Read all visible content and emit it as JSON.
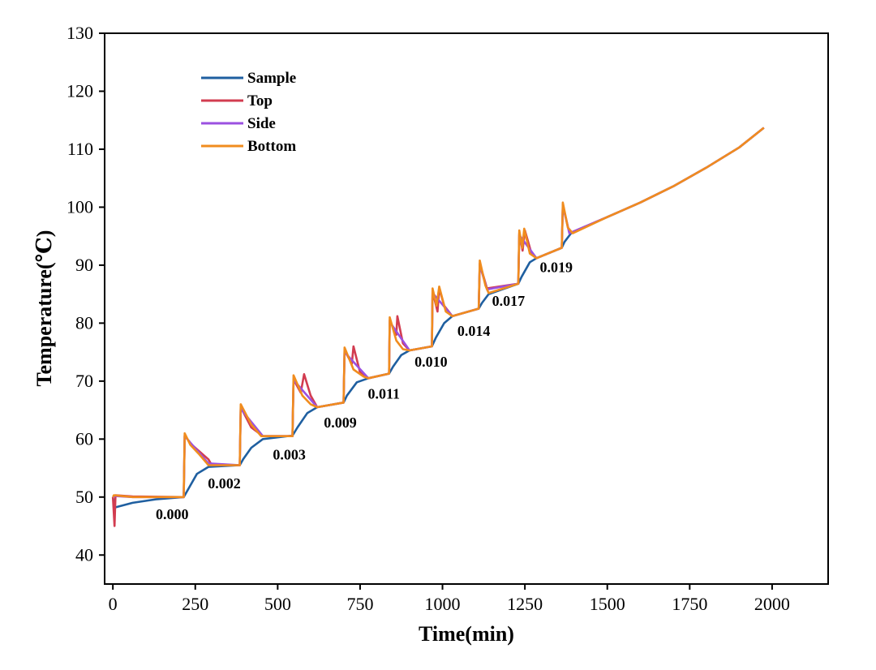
{
  "chart_data": {
    "type": "line",
    "xlabel": "Time(min)",
    "ylabel": "Temperature(℃)",
    "xlim": [
      -25,
      2170
    ],
    "ylim": [
      35,
      130
    ],
    "x_ticks": [
      0,
      250,
      500,
      750,
      1000,
      1250,
      1500,
      1750,
      2000
    ],
    "y_ticks": [
      40,
      50,
      60,
      70,
      80,
      90,
      100,
      110,
      120,
      130
    ],
    "grid": false,
    "legend_position": "top-left",
    "series": [
      {
        "name": "Sample",
        "color": "#1f5fa0",
        "points": [
          [
            0,
            50
          ],
          [
            5,
            48.2
          ],
          [
            60,
            49.0
          ],
          [
            130,
            49.6
          ],
          [
            215,
            50.0
          ],
          [
            230,
            51.5
          ],
          [
            255,
            54.0
          ],
          [
            290,
            55.2
          ],
          [
            385,
            55.5
          ],
          [
            395,
            56.5
          ],
          [
            420,
            58.5
          ],
          [
            455,
            60.0
          ],
          [
            545,
            60.6
          ],
          [
            560,
            62.0
          ],
          [
            590,
            64.5
          ],
          [
            620,
            65.5
          ],
          [
            700,
            66.3
          ],
          [
            710,
            67.5
          ],
          [
            740,
            69.8
          ],
          [
            775,
            70.5
          ],
          [
            838,
            71.3
          ],
          [
            850,
            72.5
          ],
          [
            875,
            74.5
          ],
          [
            900,
            75.3
          ],
          [
            968,
            76.0
          ],
          [
            980,
            77.5
          ],
          [
            1005,
            80.0
          ],
          [
            1030,
            81.2
          ],
          [
            1110,
            82.5
          ],
          [
            1120,
            83.5
          ],
          [
            1140,
            85.0
          ],
          [
            1230,
            86.8
          ],
          [
            1240,
            88.0
          ],
          [
            1265,
            90.5
          ],
          [
            1285,
            91.2
          ],
          [
            1362,
            93.0
          ],
          [
            1370,
            94.0
          ],
          [
            1390,
            95.5
          ],
          [
            1500,
            98.3
          ],
          [
            1600,
            100.8
          ],
          [
            1700,
            103.6
          ],
          [
            1800,
            106.8
          ],
          [
            1900,
            110.3
          ],
          [
            1975,
            113.7
          ]
        ]
      },
      {
        "name": "Top",
        "color": "#d23c50",
        "points": [
          [
            0,
            50
          ],
          [
            5,
            45.0
          ],
          [
            8,
            50.3
          ],
          [
            60,
            50.1
          ],
          [
            215,
            50.0
          ],
          [
            218,
            60.6
          ],
          [
            240,
            59.0
          ],
          [
            290,
            56.5
          ],
          [
            300,
            55.5
          ],
          [
            385,
            55.5
          ],
          [
            388,
            65.5
          ],
          [
            420,
            62.0
          ],
          [
            455,
            60.5
          ],
          [
            545,
            60.5
          ],
          [
            548,
            70.3
          ],
          [
            570,
            68.0
          ],
          [
            580,
            71.2
          ],
          [
            600,
            67.5
          ],
          [
            620,
            65.5
          ],
          [
            700,
            66.3
          ],
          [
            703,
            75.3
          ],
          [
            725,
            73.0
          ],
          [
            730,
            76.0
          ],
          [
            750,
            71.5
          ],
          [
            775,
            70.5
          ],
          [
            838,
            71.3
          ],
          [
            840,
            80.5
          ],
          [
            860,
            78.0
          ],
          [
            863,
            81.2
          ],
          [
            880,
            76.5
          ],
          [
            900,
            75.3
          ],
          [
            968,
            76.0
          ],
          [
            970,
            85.5
          ],
          [
            985,
            82.0
          ],
          [
            990,
            86.0
          ],
          [
            1005,
            83.0
          ],
          [
            1030,
            81.2
          ],
          [
            1110,
            82.5
          ],
          [
            1113,
            90.3
          ],
          [
            1135,
            86.0
          ],
          [
            1230,
            86.8
          ],
          [
            1233,
            95.5
          ],
          [
            1243,
            92.5
          ],
          [
            1250,
            96.0
          ],
          [
            1270,
            92.0
          ],
          [
            1285,
            91.2
          ],
          [
            1362,
            93.0
          ],
          [
            1365,
            100.5
          ],
          [
            1385,
            95.5
          ],
          [
            1500,
            98.3
          ],
          [
            1600,
            100.8
          ],
          [
            1700,
            103.6
          ],
          [
            1800,
            106.8
          ],
          [
            1900,
            110.3
          ],
          [
            1975,
            113.7
          ]
        ]
      },
      {
        "name": "Side",
        "color": "#9b50e0",
        "points": [
          [
            0,
            50
          ],
          [
            3,
            50.2
          ],
          [
            60,
            50.0
          ],
          [
            215,
            50.0
          ],
          [
            218,
            60.5
          ],
          [
            290,
            55.8
          ],
          [
            385,
            55.5
          ],
          [
            388,
            65.2
          ],
          [
            455,
            60.5
          ],
          [
            545,
            60.5
          ],
          [
            548,
            70.2
          ],
          [
            620,
            65.5
          ],
          [
            700,
            66.3
          ],
          [
            703,
            75.0
          ],
          [
            775,
            70.5
          ],
          [
            838,
            71.3
          ],
          [
            840,
            80.2
          ],
          [
            900,
            75.3
          ],
          [
            968,
            76.0
          ],
          [
            970,
            85.2
          ],
          [
            1030,
            81.2
          ],
          [
            1110,
            82.5
          ],
          [
            1113,
            90.0
          ],
          [
            1135,
            85.8
          ],
          [
            1230,
            86.8
          ],
          [
            1233,
            95.2
          ],
          [
            1285,
            91.2
          ],
          [
            1362,
            93.0
          ],
          [
            1365,
            100.2
          ],
          [
            1385,
            95.5
          ],
          [
            1500,
            98.3
          ],
          [
            1600,
            100.8
          ],
          [
            1700,
            103.6
          ],
          [
            1800,
            106.8
          ],
          [
            1900,
            110.3
          ],
          [
            1975,
            113.7
          ]
        ]
      },
      {
        "name": "Bottom",
        "color": "#f08c1e",
        "points": [
          [
            0,
            50
          ],
          [
            3,
            50.3
          ],
          [
            60,
            50.0
          ],
          [
            215,
            50.0
          ],
          [
            218,
            61.0
          ],
          [
            235,
            59.0
          ],
          [
            260,
            57.5
          ],
          [
            290,
            55.5
          ],
          [
            385,
            55.5
          ],
          [
            388,
            66.0
          ],
          [
            420,
            62.5
          ],
          [
            450,
            60.5
          ],
          [
            545,
            60.5
          ],
          [
            548,
            71.0
          ],
          [
            575,
            67.5
          ],
          [
            600,
            66.0
          ],
          [
            620,
            65.5
          ],
          [
            700,
            66.3
          ],
          [
            703,
            75.8
          ],
          [
            730,
            72.0
          ],
          [
            760,
            70.8
          ],
          [
            775,
            70.5
          ],
          [
            838,
            71.3
          ],
          [
            840,
            81.0
          ],
          [
            860,
            77.0
          ],
          [
            880,
            75.5
          ],
          [
            900,
            75.3
          ],
          [
            968,
            76.0
          ],
          [
            970,
            86.0
          ],
          [
            982,
            83.0
          ],
          [
            990,
            86.3
          ],
          [
            1010,
            82.0
          ],
          [
            1030,
            81.2
          ],
          [
            1110,
            82.5
          ],
          [
            1113,
            90.8
          ],
          [
            1130,
            86.5
          ],
          [
            1140,
            85.2
          ],
          [
            1230,
            86.8
          ],
          [
            1233,
            96.0
          ],
          [
            1242,
            93.0
          ],
          [
            1248,
            96.3
          ],
          [
            1265,
            92.0
          ],
          [
            1285,
            91.2
          ],
          [
            1362,
            93.0
          ],
          [
            1365,
            100.8
          ],
          [
            1380,
            96.5
          ],
          [
            1395,
            95.5
          ],
          [
            1500,
            98.3
          ],
          [
            1600,
            100.8
          ],
          [
            1700,
            103.6
          ],
          [
            1800,
            106.8
          ],
          [
            1900,
            110.3
          ],
          [
            1975,
            113.7
          ]
        ]
      }
    ],
    "annotations": [
      {
        "text": "0.000",
        "x": 180,
        "y": 46.2
      },
      {
        "text": "0.002",
        "x": 338,
        "y": 51.5
      },
      {
        "text": "0.003",
        "x": 535,
        "y": 56.5
      },
      {
        "text": "0.009",
        "x": 690,
        "y": 62.0
      },
      {
        "text": "0.011",
        "x": 822,
        "y": 67.0
      },
      {
        "text": "0.010",
        "x": 965,
        "y": 72.5
      },
      {
        "text": "0.014",
        "x": 1095,
        "y": 77.8
      },
      {
        "text": "0.017",
        "x": 1200,
        "y": 83.0
      },
      {
        "text": "0.019",
        "x": 1345,
        "y": 88.8
      }
    ]
  }
}
